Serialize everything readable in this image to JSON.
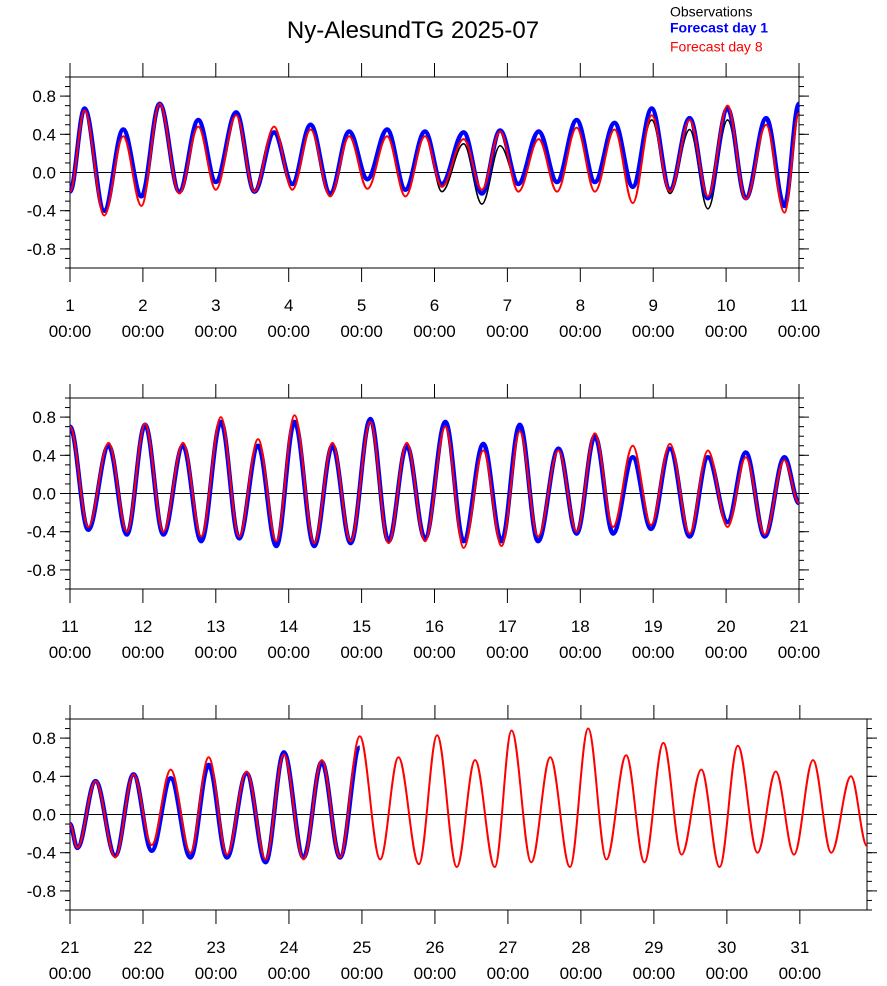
{
  "chart_data": [
    {
      "type": "line",
      "title": "Ny-AlesundTG 2025-07",
      "xlim": [
        1,
        11
      ],
      "ylim": [
        -1,
        1
      ],
      "xticks": [
        {
          "value": 1,
          "label": "1\n00:00"
        },
        {
          "value": 2,
          "label": "2\n00:00"
        },
        {
          "value": 3,
          "label": "3\n00:00"
        },
        {
          "value": 4,
          "label": "4\n00:00"
        },
        {
          "value": 5,
          "label": "5\n00:00"
        },
        {
          "value": 6,
          "label": "6\n00:00"
        },
        {
          "value": 7,
          "label": "7\n00:00"
        },
        {
          "value": 8,
          "label": "8\n00:00"
        },
        {
          "value": 9,
          "label": "9\n00:00"
        },
        {
          "value": 10,
          "label": "10\n00:00"
        },
        {
          "value": 11,
          "label": "11\n00:00"
        }
      ],
      "yticks": [
        -0.8,
        -0.4,
        {
          "value": 0,
          "label": "0.0"
        },
        0.4,
        0.8
      ],
      "x": [
        1.0,
        1.2,
        1.47,
        1.73,
        1.98,
        2.23,
        2.5,
        2.76,
        3.0,
        3.28,
        3.53,
        3.8,
        4.05,
        4.3,
        4.57,
        4.83,
        5.08,
        5.35,
        5.6,
        5.87,
        6.1,
        6.4,
        6.65,
        6.9,
        7.15,
        7.43,
        7.68,
        7.95,
        8.2,
        8.47,
        8.72,
        8.98,
        9.23,
        9.5,
        9.75,
        10.02,
        10.27,
        10.55,
        10.8,
        11.0
      ],
      "series": [
        {
          "name": "Observations",
          "color": "#000000",
          "values": [
            -0.2,
            0.67,
            -0.4,
            0.45,
            -0.25,
            0.72,
            -0.2,
            0.55,
            -0.1,
            0.63,
            -0.2,
            0.42,
            -0.12,
            0.5,
            -0.22,
            0.43,
            -0.07,
            0.45,
            -0.18,
            0.43,
            -0.2,
            0.3,
            -0.33,
            0.28,
            -0.12,
            0.43,
            -0.1,
            0.55,
            -0.1,
            0.52,
            -0.15,
            0.55,
            -0.22,
            0.45,
            -0.38,
            0.55,
            -0.27,
            0.57,
            -0.35,
            0.72
          ]
        },
        {
          "name": "Forecast day 1",
          "color": "#0000ff",
          "values": [
            -0.2,
            0.67,
            -0.4,
            0.45,
            -0.25,
            0.72,
            -0.2,
            0.55,
            -0.1,
            0.63,
            -0.2,
            0.42,
            -0.12,
            0.5,
            -0.22,
            0.43,
            -0.07,
            0.45,
            -0.18,
            0.43,
            -0.12,
            0.42,
            -0.22,
            0.44,
            -0.12,
            0.43,
            -0.1,
            0.55,
            -0.1,
            0.52,
            -0.15,
            0.67,
            -0.18,
            0.57,
            -0.27,
            0.67,
            -0.27,
            0.57,
            -0.35,
            0.72
          ]
        },
        {
          "name": "Forecast day 8",
          "color": "#ff0000",
          "values": [
            -0.2,
            0.65,
            -0.45,
            0.38,
            -0.35,
            0.72,
            -0.22,
            0.48,
            -0.18,
            0.6,
            -0.2,
            0.48,
            -0.18,
            0.45,
            -0.25,
            0.38,
            -0.17,
            0.38,
            -0.25,
            0.38,
            -0.15,
            0.35,
            -0.18,
            0.43,
            -0.2,
            0.35,
            -0.2,
            0.47,
            -0.2,
            0.45,
            -0.32,
            0.6,
            -0.2,
            0.55,
            -0.25,
            0.7,
            -0.28,
            0.5,
            -0.42,
            0.62
          ]
        }
      ]
    },
    {
      "type": "line",
      "xlim": [
        11,
        21
      ],
      "ylim": [
        -1,
        1
      ],
      "xticks": [
        {
          "value": 11,
          "label": "11\n00:00"
        },
        {
          "value": 12,
          "label": "12\n00:00"
        },
        {
          "value": 13,
          "label": "13\n00:00"
        },
        {
          "value": 14,
          "label": "14\n00:00"
        },
        {
          "value": 15,
          "label": "15\n00:00"
        },
        {
          "value": 16,
          "label": "16\n00:00"
        },
        {
          "value": 17,
          "label": "17\n00:00"
        },
        {
          "value": 18,
          "label": "18\n00:00"
        },
        {
          "value": 19,
          "label": "19\n00:00"
        },
        {
          "value": 20,
          "label": "20\n00:00"
        },
        {
          "value": 21,
          "label": "21\n00:00"
        }
      ],
      "yticks": [
        -0.8,
        -0.4,
        {
          "value": 0,
          "label": "0.0"
        },
        0.4,
        0.8
      ],
      "x": [
        11.0,
        11.25,
        11.53,
        11.78,
        12.03,
        12.28,
        12.55,
        12.8,
        13.07,
        13.32,
        13.58,
        13.83,
        14.08,
        14.35,
        14.6,
        14.85,
        15.12,
        15.37,
        15.62,
        15.87,
        16.15,
        16.4,
        16.67,
        16.92,
        17.17,
        17.42,
        17.7,
        17.95,
        18.2,
        18.45,
        18.72,
        18.97,
        19.23,
        19.5,
        19.75,
        20.02,
        20.27,
        20.53,
        20.8,
        21.0
      ],
      "series": [
        {
          "color": "#0000ff",
          "values": [
            0.7,
            -0.38,
            0.5,
            -0.43,
            0.72,
            -0.43,
            0.5,
            -0.5,
            0.75,
            -0.47,
            0.5,
            -0.55,
            0.75,
            -0.55,
            0.5,
            -0.52,
            0.78,
            -0.5,
            0.5,
            -0.47,
            0.75,
            -0.5,
            0.52,
            -0.5,
            0.72,
            -0.5,
            0.47,
            -0.42,
            0.6,
            -0.42,
            0.38,
            -0.37,
            0.47,
            -0.45,
            0.38,
            -0.3,
            0.43,
            -0.45,
            0.38,
            -0.1
          ]
        },
        {
          "color": "#ff0000",
          "values": [
            0.7,
            -0.35,
            0.53,
            -0.4,
            0.73,
            -0.4,
            0.53,
            -0.45,
            0.8,
            -0.45,
            0.57,
            -0.5,
            0.82,
            -0.52,
            0.53,
            -0.5,
            0.75,
            -0.52,
            0.53,
            -0.5,
            0.7,
            -0.57,
            0.45,
            -0.55,
            0.65,
            -0.45,
            0.45,
            -0.4,
            0.63,
            -0.35,
            0.5,
            -0.33,
            0.52,
            -0.42,
            0.45,
            -0.35,
            0.38,
            -0.43,
            0.35,
            -0.1
          ]
        }
      ]
    },
    {
      "type": "line",
      "xlim": [
        21,
        31.92
      ],
      "ylim": [
        -1,
        1
      ],
      "xticks": [
        {
          "value": 21,
          "label": "21\n00:00"
        },
        {
          "value": 22,
          "label": "22\n00:00"
        },
        {
          "value": 23,
          "label": "23\n00:00"
        },
        {
          "value": 24,
          "label": "24\n00:00"
        },
        {
          "value": 25,
          "label": "25\n00:00"
        },
        {
          "value": 26,
          "label": "26\n00:00"
        },
        {
          "value": 27,
          "label": "27\n00:00"
        },
        {
          "value": 28,
          "label": "28\n00:00"
        },
        {
          "value": 29,
          "label": "29\n00:00"
        },
        {
          "value": 30,
          "label": "30\n00:00"
        },
        {
          "value": 31,
          "label": "31\n00:00"
        }
      ],
      "yticks": [
        -0.8,
        -0.4,
        {
          "value": 0,
          "label": "0.0"
        },
        0.4,
        0.8
      ],
      "x": [
        21.0,
        21.1,
        21.35,
        21.62,
        21.87,
        22.12,
        22.38,
        22.65,
        22.9,
        23.15,
        23.42,
        23.68,
        23.93,
        24.2,
        24.45,
        24.7,
        24.97,
        25.25,
        25.5,
        25.78,
        26.03,
        26.3,
        26.55,
        26.82,
        27.05,
        27.32,
        27.58,
        27.85,
        28.1,
        28.35,
        28.62,
        28.87,
        29.13,
        29.38,
        29.65,
        29.9,
        30.15,
        30.42,
        30.67,
        30.92,
        31.18,
        31.43,
        31.7,
        31.92
      ],
      "series": [
        {
          "color": "#0000ff",
          "values": [
            -0.1,
            -0.35,
            0.35,
            -0.43,
            0.42,
            -0.38,
            0.38,
            -0.45,
            0.52,
            -0.45,
            0.43,
            -0.5,
            0.65,
            -0.45,
            0.55,
            -0.45,
            0.7,
            null,
            null,
            null,
            null,
            null,
            null,
            null,
            null,
            null,
            null,
            null,
            null,
            null,
            null,
            null,
            null,
            null,
            null,
            null,
            null,
            null,
            null,
            null,
            null,
            null,
            null,
            null
          ]
        },
        {
          "color": "#ff0000",
          "values": [
            -0.1,
            -0.35,
            0.35,
            -0.45,
            0.42,
            -0.32,
            0.47,
            -0.4,
            0.6,
            -0.42,
            0.45,
            -0.47,
            0.63,
            -0.47,
            0.57,
            -0.45,
            0.82,
            -0.47,
            0.6,
            -0.52,
            0.83,
            -0.55,
            0.57,
            -0.55,
            0.88,
            -0.5,
            0.6,
            -0.55,
            0.9,
            -0.47,
            0.62,
            -0.5,
            0.75,
            -0.42,
            0.47,
            -0.55,
            0.72,
            -0.4,
            0.45,
            -0.42,
            0.57,
            -0.4,
            0.4,
            -0.33
          ]
        }
      ]
    }
  ]
}
